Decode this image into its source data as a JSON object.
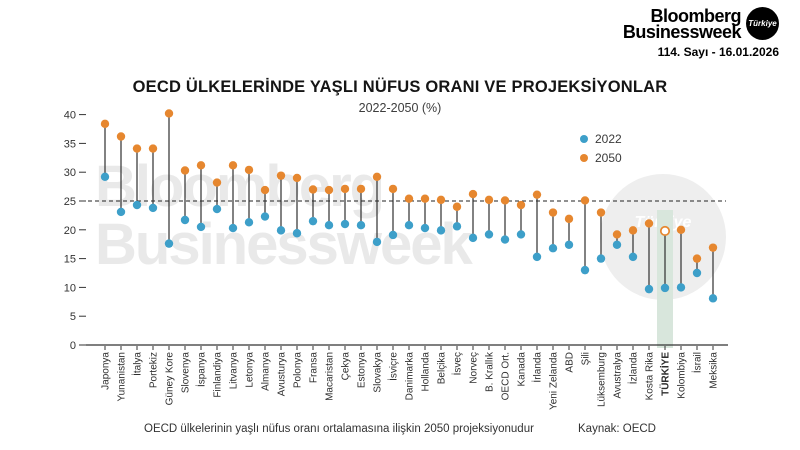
{
  "header": {
    "logo": {
      "line1": "Bloomberg",
      "line2": "Businessweek",
      "badge": "Türkiye"
    },
    "issue": "114. Sayı - 16.01.2026"
  },
  "watermark": {
    "line1": "Bloomberg",
    "line2": "Businessweek",
    "badge": "Türkiye"
  },
  "footer": {
    "note": "OECD ülkelerinin yaşlı nüfus oranı ortalamasına ilişkin 2050 projeksiyonudur",
    "source": "Kaynak: OECD"
  },
  "chart_data": {
    "type": "scatter",
    "subtype": "dumbbell-lollipop",
    "title": "OECD ÜLKELERİNDE YAŞLI NÜFUS ORANI VE PROJEKSİYONLAR",
    "subtitle": "2022-2050 (%)",
    "categories": [
      "Japonya",
      "Yunanistan",
      "İtalya",
      "Portekiz",
      "Güney Kore",
      "Slovenya",
      "İspanya",
      "Finlandiya",
      "Litvanya",
      "Letonya",
      "Almanya",
      "Avusturya",
      "Polonya",
      "Fransa",
      "Macaristan",
      "Çekya",
      "Estonya",
      "Slovakya",
      "İsviçre",
      "Danimarka",
      "Hollanda",
      "Belçika",
      "İsveç",
      "Norveç",
      "B. Krallık",
      "OECD Ort.",
      "Kanada",
      "İrlanda",
      "Yeni Zelanda",
      "ABD",
      "Şili",
      "Lüksemburg",
      "Avustralya",
      "İzlanda",
      "Kosta Rika",
      "TÜRKİYE",
      "Kolombiya",
      "İsrail",
      "Meksika"
    ],
    "series": [
      {
        "name": "2022",
        "color": "#3D9FC9",
        "values": [
          29.2,
          23.1,
          24.3,
          23.8,
          17.6,
          21.7,
          20.5,
          23.6,
          20.3,
          21.3,
          22.3,
          19.9,
          19.4,
          21.5,
          20.8,
          21.0,
          20.8,
          17.9,
          19.1,
          20.8,
          20.3,
          19.9,
          20.6,
          18.6,
          19.2,
          18.3,
          19.2,
          15.3,
          16.8,
          17.4,
          13.0,
          15.0,
          17.4,
          15.3,
          9.7,
          9.9,
          10.0,
          12.5,
          8.1
        ]
      },
      {
        "name": "2050",
        "color": "#E6872F",
        "values": [
          38.4,
          36.2,
          34.1,
          34.1,
          40.2,
          30.3,
          31.2,
          28.2,
          31.2,
          30.4,
          26.9,
          29.4,
          29.0,
          27.0,
          26.9,
          27.1,
          27.1,
          29.2,
          27.1,
          25.4,
          25.4,
          25.2,
          24.0,
          26.2,
          25.2,
          25.1,
          24.3,
          26.1,
          23.0,
          21.9,
          25.1,
          23.0,
          19.2,
          19.9,
          21.1,
          19.8,
          20.0,
          15.0,
          16.9
        ]
      }
    ],
    "ylim": [
      0,
      40
    ],
    "yticks": [
      0,
      5,
      10,
      15,
      20,
      25,
      30,
      35,
      40
    ],
    "xlabel": "",
    "ylabel": "",
    "grid": false,
    "legend_position": "top-right",
    "reference_line": {
      "value": 25,
      "style": "dashed"
    },
    "highlight": {
      "category": "TÜRKİYE",
      "band_color": "#D8E6DC",
      "marker_2050": "open-circle"
    }
  }
}
